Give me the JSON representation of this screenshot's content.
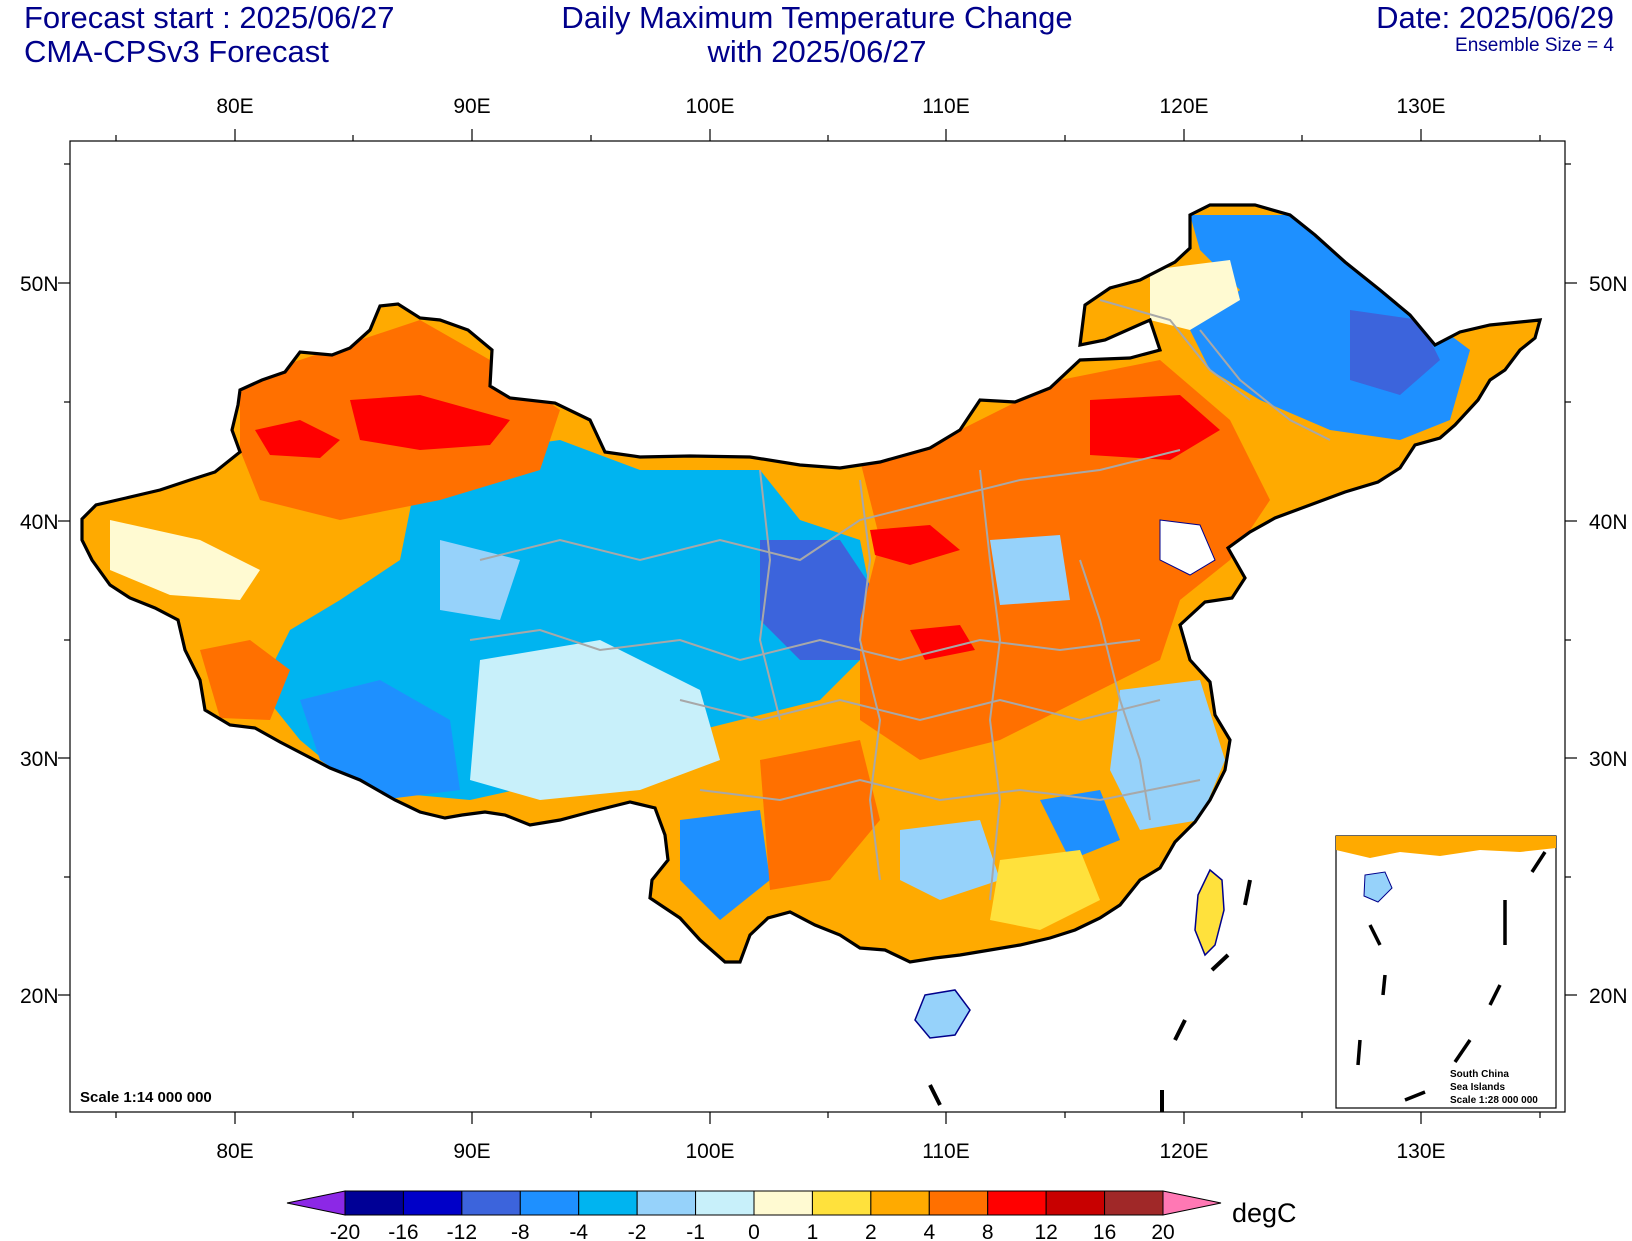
{
  "header": {
    "forecast_start": "Forecast start : 2025/06/27",
    "model": "CMA-CPSv3 Forecast",
    "title_line1": "Daily Maximum Temperature Change",
    "title_line2": "with 2025/06/27",
    "date": "Date: 2025/06/29",
    "ensemble": "Ensemble Size = 4"
  },
  "map": {
    "lon_ticks": [
      "80E",
      "90E",
      "100E",
      "110E",
      "120E",
      "130E"
    ],
    "lat_ticks": [
      "50N",
      "40N",
      "30N",
      "20N"
    ],
    "scale_label": "Scale 1:14 000 000",
    "inset": {
      "line1": "South China",
      "line2": "Sea Islands",
      "line3": "Scale 1:28 000 000"
    }
  },
  "colorbar": {
    "labels": [
      "-20",
      "-16",
      "-12",
      "-8",
      "-4",
      "-2",
      "-1",
      "0",
      "1",
      "2",
      "4",
      "8",
      "12",
      "16",
      "20"
    ],
    "unit": "degC",
    "colors": [
      "#000096",
      "#0000c8",
      "#3c64dc",
      "#1e90ff",
      "#00b4f0",
      "#96d2fa",
      "#c8f0fa",
      "#fffad2",
      "#ffe13c",
      "#ffaa00",
      "#ff7000",
      "#ff0000",
      "#c80000",
      "#a02828"
    ],
    "under_color": "#8c28e6",
    "over_color": "#ff78b4"
  }
}
